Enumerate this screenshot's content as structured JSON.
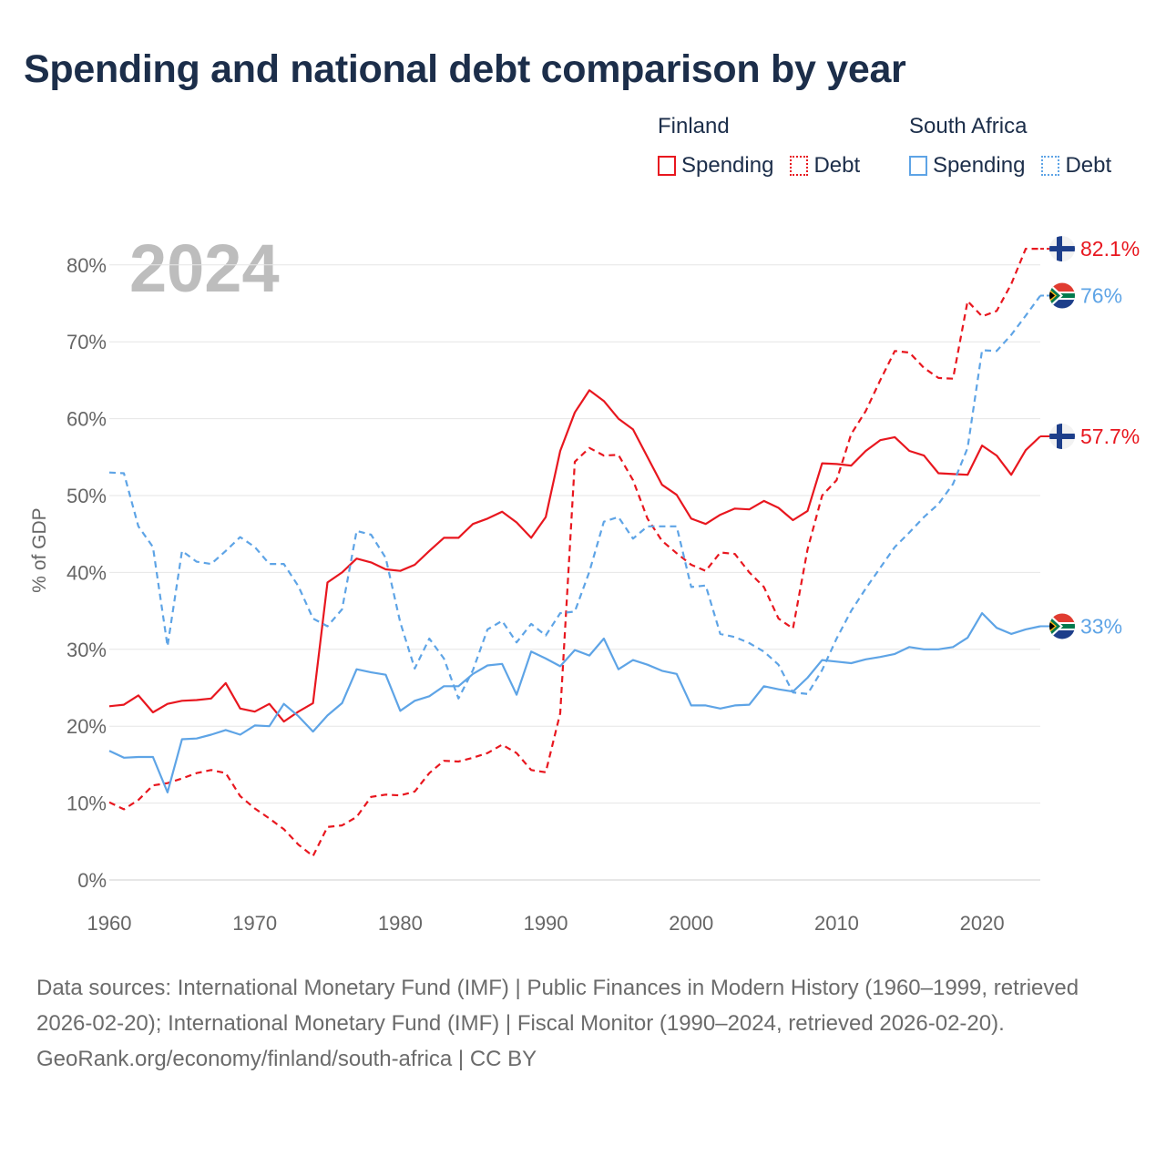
{
  "title": "Spending and national debt comparison by year",
  "year_watermark": "2024",
  "legend": {
    "finland": {
      "country": "Finland",
      "spending": "Spending",
      "debt": "Debt"
    },
    "south_africa": {
      "country": "South Africa",
      "spending": "Spending",
      "debt": "Debt"
    }
  },
  "colors": {
    "finland": "#e8171f",
    "south_africa": "#5ea4e6"
  },
  "end_labels": {
    "finland_debt": "82.1%",
    "south_africa_debt": "76%",
    "finland_spending": "57.7%",
    "south_africa_spending": "33%"
  },
  "footer": {
    "sources": "Data sources: International Monetary Fund (IMF) | Public Finances in Modern History (1960–1999, retrieved 2026-02-20); International Monetary Fund (IMF) | Fiscal Monitor (1990–2024, retrieved 2026-02-20).",
    "attribution": "GeoRank.org/economy/finland/south-africa | CC BY"
  },
  "chart_data": {
    "type": "line",
    "title": "Spending and national debt comparison by year",
    "xlabel": "",
    "ylabel": "% of GDP",
    "xlim": [
      1960,
      2024
    ],
    "ylim": [
      0,
      85
    ],
    "x_ticks": [
      1960,
      1970,
      1980,
      1990,
      2000,
      2010,
      2020
    ],
    "y_ticks": [
      0,
      10,
      20,
      30,
      40,
      50,
      60,
      70,
      80
    ],
    "y_tick_labels": [
      "0%",
      "10%",
      "20%",
      "30%",
      "40%",
      "50%",
      "60%",
      "70%",
      "80%"
    ],
    "grid": true,
    "x": [
      1960,
      1961,
      1962,
      1963,
      1964,
      1965,
      1966,
      1967,
      1968,
      1969,
      1970,
      1971,
      1972,
      1973,
      1974,
      1975,
      1976,
      1977,
      1978,
      1979,
      1980,
      1981,
      1982,
      1983,
      1984,
      1985,
      1986,
      1987,
      1988,
      1989,
      1990,
      1991,
      1992,
      1993,
      1994,
      1995,
      1996,
      1997,
      1998,
      1999,
      2000,
      2001,
      2002,
      2003,
      2004,
      2005,
      2006,
      2007,
      2008,
      2009,
      2010,
      2011,
      2012,
      2013,
      2014,
      2015,
      2016,
      2017,
      2018,
      2019,
      2020,
      2021,
      2022,
      2023,
      2024
    ],
    "series": [
      {
        "name": "Finland Spending",
        "country": "Finland",
        "style": "solid",
        "values": [
          22.6,
          22.8,
          24.0,
          21.8,
          22.9,
          23.3,
          23.4,
          23.6,
          25.6,
          22.3,
          21.9,
          22.9,
          20.6,
          21.9,
          23.0,
          38.7,
          40.0,
          41.8,
          41.3,
          40.4,
          40.2,
          41.0,
          42.8,
          44.5,
          44.5,
          46.3,
          47.0,
          47.9,
          46.5,
          44.5,
          47.2,
          55.8,
          60.8,
          63.7,
          62.3,
          60.0,
          58.6,
          55.0,
          51.4,
          50.1,
          47.0,
          46.3,
          47.5,
          48.3,
          48.2,
          49.3,
          48.4,
          46.8,
          48.0,
          54.2,
          54.1,
          53.9,
          55.8,
          57.2,
          57.6,
          55.8,
          55.2,
          52.9,
          52.8,
          52.7,
          56.5,
          55.2,
          52.7,
          55.9,
          57.7
        ]
      },
      {
        "name": "Finland Debt",
        "country": "Finland",
        "style": "dashed",
        "values": [
          10.1,
          9.2,
          10.4,
          12.3,
          12.6,
          13.2,
          13.9,
          14.3,
          13.9,
          10.9,
          9.3,
          8.0,
          6.6,
          4.6,
          3.1,
          6.9,
          7.1,
          8.2,
          10.8,
          11.1,
          11.0,
          11.5,
          13.9,
          15.5,
          15.4,
          15.9,
          16.5,
          17.6,
          16.5,
          14.3,
          14.0,
          21.7,
          54.4,
          56.2,
          55.2,
          55.3,
          52.0,
          47.0,
          44.1,
          42.5,
          41.0,
          40.2,
          42.6,
          42.4,
          40.0,
          38.1,
          34.0,
          32.7,
          43.0,
          50.0,
          52.0,
          58.0,
          61.0,
          65.0,
          68.8,
          68.6,
          66.6,
          65.3,
          65.2,
          75.3,
          73.3,
          74.0,
          77.5,
          82.1,
          82.1
        ]
      },
      {
        "name": "South Africa Spending",
        "country": "South Africa",
        "style": "solid",
        "values": [
          16.8,
          15.9,
          16.0,
          16.0,
          11.4,
          18.3,
          18.4,
          18.9,
          19.5,
          18.9,
          20.1,
          20.0,
          22.9,
          21.3,
          19.3,
          21.4,
          23.0,
          27.4,
          27.0,
          26.7,
          22.0,
          23.3,
          23.9,
          25.2,
          25.2,
          26.8,
          27.9,
          28.1,
          24.1,
          29.7,
          28.8,
          27.8,
          29.9,
          29.2,
          31.4,
          27.4,
          28.6,
          28.0,
          27.2,
          26.8,
          22.7,
          22.7,
          22.3,
          22.7,
          22.8,
          25.2,
          24.8,
          24.5,
          26.3,
          28.6,
          28.4,
          28.2,
          28.7,
          29.0,
          29.4,
          30.3,
          30.0,
          30.0,
          30.3,
          31.5,
          34.7,
          32.8,
          32.0,
          32.6,
          33.0
        ]
      },
      {
        "name": "South Africa Debt",
        "country": "South Africa",
        "style": "dashed",
        "values": [
          53.0,
          52.9,
          46.0,
          43.3,
          30.4,
          42.8,
          41.4,
          41.1,
          42.8,
          44.6,
          43.3,
          41.1,
          41.1,
          38.2,
          34.0,
          33.0,
          35.2,
          45.4,
          44.9,
          41.9,
          33.5,
          27.5,
          31.4,
          28.8,
          23.6,
          27.3,
          32.6,
          33.7,
          30.9,
          33.3,
          31.8,
          34.7,
          34.9,
          40.1,
          46.6,
          47.2,
          44.4,
          46.0,
          46.0,
          46.0,
          38.1,
          38.3,
          32.0,
          31.6,
          30.8,
          29.7,
          28.0,
          24.4,
          24.2,
          27.3,
          31.4,
          35.0,
          37.9,
          40.6,
          43.3,
          45.2,
          47.2,
          48.9,
          51.5,
          56.2,
          68.9,
          68.8,
          70.9,
          73.4,
          76.0
        ]
      }
    ]
  }
}
